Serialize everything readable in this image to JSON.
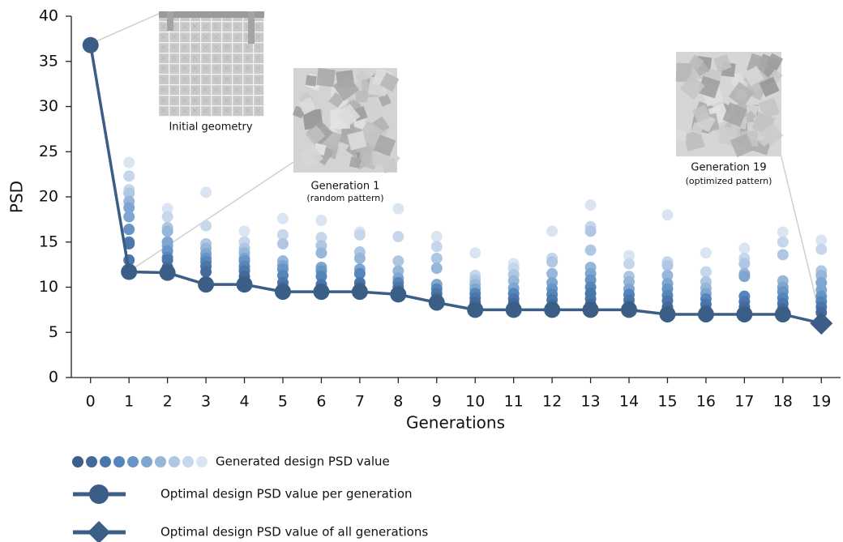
{
  "chart_data": {
    "type": "scatter",
    "xlabel": "Generations",
    "ylabel": "PSD",
    "xlim": [
      -0.5,
      19.5
    ],
    "xticks": [
      0,
      1,
      2,
      3,
      4,
      5,
      6,
      7,
      8,
      9,
      10,
      11,
      12,
      13,
      14,
      15,
      16,
      17,
      18,
      19
    ],
    "ylim": [
      0,
      40
    ],
    "yticks": [
      0,
      5,
      10,
      15,
      20,
      25,
      30,
      35,
      40
    ],
    "grid": false,
    "series": [
      {
        "name": "Generated design PSD value",
        "type": "scatter",
        "colors": [
          "#3c5f87",
          "#44699a",
          "#4a76ab",
          "#5485bb",
          "#6895c6",
          "#7fa6d0",
          "#97b7da",
          "#afc7e3",
          "#c6d7eb",
          "#dbe5f2"
        ],
        "x": [
          1,
          1,
          1,
          1,
          1,
          1,
          1,
          1,
          1,
          1,
          1,
          1,
          1,
          2,
          2,
          2,
          2,
          2,
          2,
          2,
          2,
          2,
          2,
          2,
          3,
          3,
          3,
          3,
          3,
          3,
          3,
          3,
          3,
          3,
          4,
          4,
          4,
          4,
          4,
          4,
          4,
          4,
          4,
          4,
          5,
          5,
          5,
          5,
          5,
          5,
          5,
          5,
          5,
          5,
          6,
          6,
          6,
          6,
          6,
          6,
          6,
          6,
          6,
          6,
          7,
          7,
          7,
          7,
          7,
          7,
          7,
          7,
          7,
          8,
          8,
          8,
          8,
          8,
          8,
          8,
          8,
          8,
          9,
          9,
          9,
          9,
          9,
          9,
          9,
          9,
          9,
          10,
          10,
          10,
          10,
          10,
          10,
          10,
          10,
          10,
          11,
          11,
          11,
          11,
          11,
          11,
          11,
          11,
          11,
          12,
          12,
          12,
          12,
          12,
          12,
          12,
          12,
          12,
          12,
          13,
          13,
          13,
          13,
          13,
          13,
          13,
          13,
          13,
          13,
          13,
          13,
          14,
          14,
          14,
          14,
          14,
          14,
          14,
          14,
          14,
          15,
          15,
          15,
          15,
          15,
          15,
          15,
          15,
          15,
          15,
          16,
          16,
          16,
          16,
          16,
          16,
          16,
          16,
          16,
          17,
          17,
          17,
          17,
          17,
          17,
          17,
          17,
          17,
          18,
          18,
          18,
          18,
          18,
          18,
          18,
          18,
          18,
          18,
          19,
          19,
          19,
          19,
          19,
          19,
          19,
          19,
          19,
          19,
          19
        ],
        "values": [
          23.8,
          22.3,
          20.8,
          20.4,
          19.5,
          18.8,
          17.8,
          16.4,
          15.0,
          14.8,
          13.0,
          12.0,
          11.7,
          18.7,
          17.8,
          16.6,
          16.2,
          15.0,
          14.6,
          14.0,
          13.3,
          13.0,
          12.2,
          11.6,
          20.5,
          16.8,
          14.8,
          14.3,
          13.7,
          13.2,
          12.8,
          12.3,
          11.7,
          10.3,
          16.2,
          15.0,
          14.3,
          13.8,
          13.2,
          12.9,
          12.3,
          11.8,
          11.2,
          10.3,
          17.6,
          15.8,
          14.8,
          12.9,
          12.4,
          12.0,
          11.3,
          10.5,
          10.0,
          9.5,
          17.4,
          15.5,
          14.6,
          13.8,
          12.2,
          11.8,
          11.2,
          10.3,
          9.8,
          9.5,
          16.1,
          15.8,
          13.9,
          13.2,
          12.0,
          11.5,
          10.5,
          10.0,
          9.5,
          18.7,
          15.6,
          12.9,
          11.8,
          11.0,
          10.5,
          10.0,
          9.6,
          9.2,
          15.6,
          14.5,
          13.2,
          12.1,
          10.3,
          9.8,
          9.3,
          8.8,
          8.3,
          13.8,
          11.3,
          10.8,
          10.3,
          9.8,
          9.3,
          8.8,
          8.3,
          7.5,
          12.6,
          12.1,
          11.4,
          10.7,
          9.9,
          9.3,
          8.7,
          8.2,
          7.5,
          16.2,
          13.2,
          12.8,
          11.5,
          10.5,
          9.8,
          9.2,
          8.6,
          8.0,
          7.5,
          19.1,
          16.7,
          16.2,
          14.1,
          12.2,
          11.5,
          10.8,
          10.0,
          9.3,
          8.7,
          8.1,
          7.5,
          13.5,
          12.6,
          11.2,
          10.6,
          9.8,
          9.2,
          8.6,
          8.0,
          7.5,
          18.0,
          12.8,
          12.4,
          11.3,
          10.4,
          9.8,
          9.1,
          8.5,
          7.8,
          7.0,
          13.8,
          11.7,
          10.6,
          9.9,
          9.3,
          8.7,
          8.1,
          7.5,
          7.0,
          14.3,
          13.2,
          12.6,
          11.5,
          11.2,
          9.0,
          8.4,
          7.8,
          7.0,
          16.1,
          15.0,
          13.6,
          10.7,
          10.0,
          9.5,
          8.8,
          8.2,
          7.6,
          7.0,
          15.2,
          14.2,
          11.8,
          11.3,
          10.5,
          9.7,
          9.0,
          8.4,
          7.8,
          7.2,
          6.0
        ]
      },
      {
        "name": "Optimal design PSD value per generation",
        "type": "line",
        "color": "#3b5e86",
        "x": [
          0,
          1,
          2,
          3,
          4,
          5,
          6,
          7,
          8,
          9,
          10,
          11,
          12,
          13,
          14,
          15,
          16,
          17,
          18,
          19
        ],
        "values": [
          36.8,
          11.7,
          11.6,
          10.3,
          10.3,
          9.5,
          9.5,
          9.5,
          9.2,
          8.3,
          7.5,
          7.5,
          7.5,
          7.5,
          7.5,
          7.0,
          7.0,
          7.0,
          7.0,
          6.0
        ]
      },
      {
        "name": "Optimal design PSD value of all generations",
        "type": "diamond",
        "color": "#3b5e86",
        "x": [
          19
        ],
        "values": [
          6.0
        ]
      }
    ],
    "annotations": [
      {
        "text": "Initial geometry"
      },
      {
        "text": "Generation 1",
        "subtext": "(random pattern)"
      },
      {
        "text": "Generation 19",
        "subtext": "(optimized pattern)"
      }
    ]
  }
}
